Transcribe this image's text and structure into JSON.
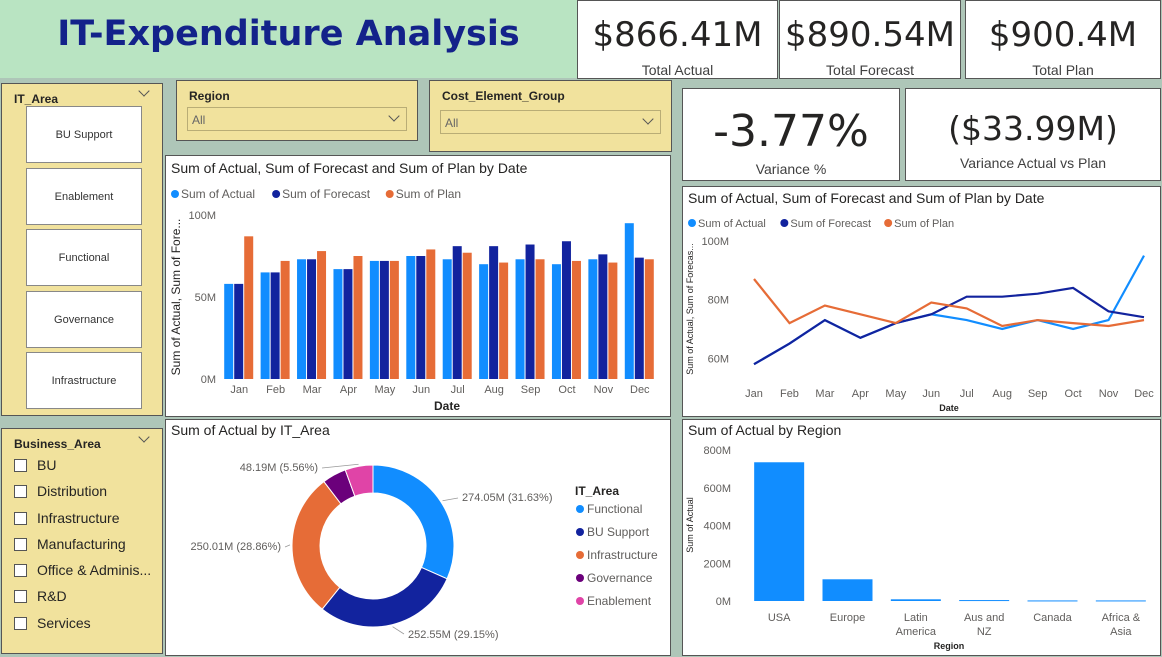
{
  "header": {
    "title": "IT-Expenditure Analysis"
  },
  "kpis": {
    "total_actual": {
      "value": "$866.41M",
      "label": "Total Actual"
    },
    "total_forecast": {
      "value": "$890.54M",
      "label": "Total Forecast"
    },
    "total_plan": {
      "value": "$900.4M",
      "label": "Total Plan"
    },
    "variance_pct": {
      "value": "-3.77%",
      "label": "Variance %"
    },
    "variance_amount": {
      "value": "($33.99M)",
      "label": "Variance Actual vs Plan"
    }
  },
  "slicers": {
    "it_area": {
      "header": "IT_Area",
      "tiles": [
        "BU Support",
        "Enablement",
        "Functional",
        "Governance",
        "Infrastructure"
      ]
    },
    "region": {
      "header": "Region",
      "selected": "All"
    },
    "cost_element_group": {
      "header": "Cost_Element_Group",
      "selected": "All"
    },
    "business_area": {
      "header": "Business_Area",
      "items": [
        "BU",
        "Distribution",
        "Infrastructure",
        "Manufacturing",
        "Office & Adminis...",
        "R&D",
        "Services"
      ]
    }
  },
  "colors": {
    "actual": "#118dff",
    "forecast": "#12239e",
    "plan": "#e66c37",
    "governance": "#6b007b",
    "enablement": "#e044a7"
  },
  "chart_data": [
    {
      "type": "bar",
      "title": "Sum of Actual, Sum of Forecast and Sum of Plan by Date",
      "xlabel": "Date",
      "ylabel": "Sum of Actual, Sum of Fore...",
      "categories": [
        "Jan",
        "Feb",
        "Mar",
        "Apr",
        "May",
        "Jun",
        "Jul",
        "Aug",
        "Sep",
        "Oct",
        "Nov",
        "Dec"
      ],
      "yticks": [
        "0M",
        "50M",
        "100M"
      ],
      "ylim": [
        0,
        100
      ],
      "legend_position": "top-left",
      "series": [
        {
          "name": "Sum of Actual",
          "values": [
            58,
            65,
            73,
            67,
            72,
            75,
            73,
            70,
            73,
            70,
            73,
            95
          ]
        },
        {
          "name": "Sum of Forecast",
          "values": [
            58,
            65,
            73,
            67,
            72,
            75,
            81,
            81,
            82,
            84,
            76,
            74
          ]
        },
        {
          "name": "Sum of Plan",
          "values": [
            87,
            72,
            78,
            75,
            72,
            79,
            77,
            71,
            73,
            72,
            71,
            73
          ]
        }
      ]
    },
    {
      "type": "line",
      "title": "Sum of Actual, Sum of Forecast and Sum of Plan by Date",
      "xlabel": "Date",
      "ylabel": "Sum of Actual, Sum of Forecas...",
      "categories": [
        "Jan",
        "Feb",
        "Mar",
        "Apr",
        "May",
        "Jun",
        "Jul",
        "Aug",
        "Sep",
        "Oct",
        "Nov",
        "Dec"
      ],
      "yticks": [
        "60M",
        "80M",
        "100M"
      ],
      "ylim": [
        55,
        102
      ],
      "legend_position": "top-left",
      "series": [
        {
          "name": "Sum of Actual",
          "values": [
            58,
            65,
            73,
            67,
            72,
            75,
            73,
            70,
            73,
            70,
            73,
            95
          ]
        },
        {
          "name": "Sum of Forecast",
          "values": [
            58,
            65,
            73,
            67,
            72,
            75,
            81,
            81,
            82,
            84,
            76,
            74
          ]
        },
        {
          "name": "Sum of Plan",
          "values": [
            87,
            72,
            78,
            75,
            72,
            79,
            77,
            71,
            73,
            72,
            71,
            73
          ]
        }
      ]
    },
    {
      "type": "pie",
      "title": "Sum of Actual by IT_Area",
      "legend_title": "IT_Area",
      "legend_position": "right",
      "slices": [
        {
          "name": "Functional",
          "value": 274.05,
          "label": "274.05M (31.63%)"
        },
        {
          "name": "BU Support",
          "value": 252.55,
          "label": "252.55M (29.15%)"
        },
        {
          "name": "Infrastructure",
          "value": 250.01,
          "label": "250.01M (28.86%)"
        },
        {
          "name": "Governance",
          "value": 41.61,
          "label": ""
        },
        {
          "name": "Enablement",
          "value": 48.19,
          "label": "48.19M (5.56%)"
        }
      ]
    },
    {
      "type": "bar",
      "title": "Sum of Actual by Region",
      "xlabel": "Region",
      "ylabel": "Sum of Actual",
      "categories": [
        "USA",
        "Europe",
        "Latin America",
        "Aus and NZ",
        "Canada",
        "Africa & Asia"
      ],
      "yticks": [
        "0M",
        "200M",
        "400M",
        "600M",
        "800M"
      ],
      "ylim": [
        0,
        800
      ],
      "values": [
        735,
        115,
        9,
        5,
        3,
        3
      ]
    }
  ]
}
